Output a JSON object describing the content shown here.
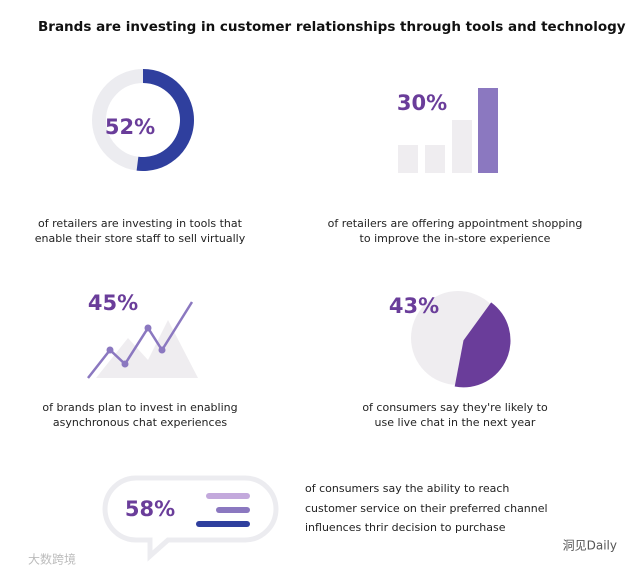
{
  "title": "Brands are investing in customer relationships through tools and technology",
  "stats": [
    {
      "label": "52%",
      "value": 52,
      "caption": [
        "of retailers are investing in tools that",
        "enable their store staff to sell virtually"
      ]
    },
    {
      "label": "30%",
      "caption": [
        "of retailers are offering appointment shopping",
        "to improve the in-store experience"
      ]
    },
    {
      "label": "45%",
      "caption": [
        "of brands plan to invest in enabling",
        "asynchronous chat experiences"
      ]
    },
    {
      "label": "43%",
      "value": 43,
      "caption": [
        "of consumers say they're likely to",
        "use live chat in the next year"
      ]
    },
    {
      "label": "58%",
      "caption": [
        "of consumers say the ability to reach",
        "customer service on their preferred channel",
        "influences thrir decision to purchase"
      ]
    }
  ],
  "watermarks": [
    "大数跨境",
    "洞见Daily"
  ]
}
